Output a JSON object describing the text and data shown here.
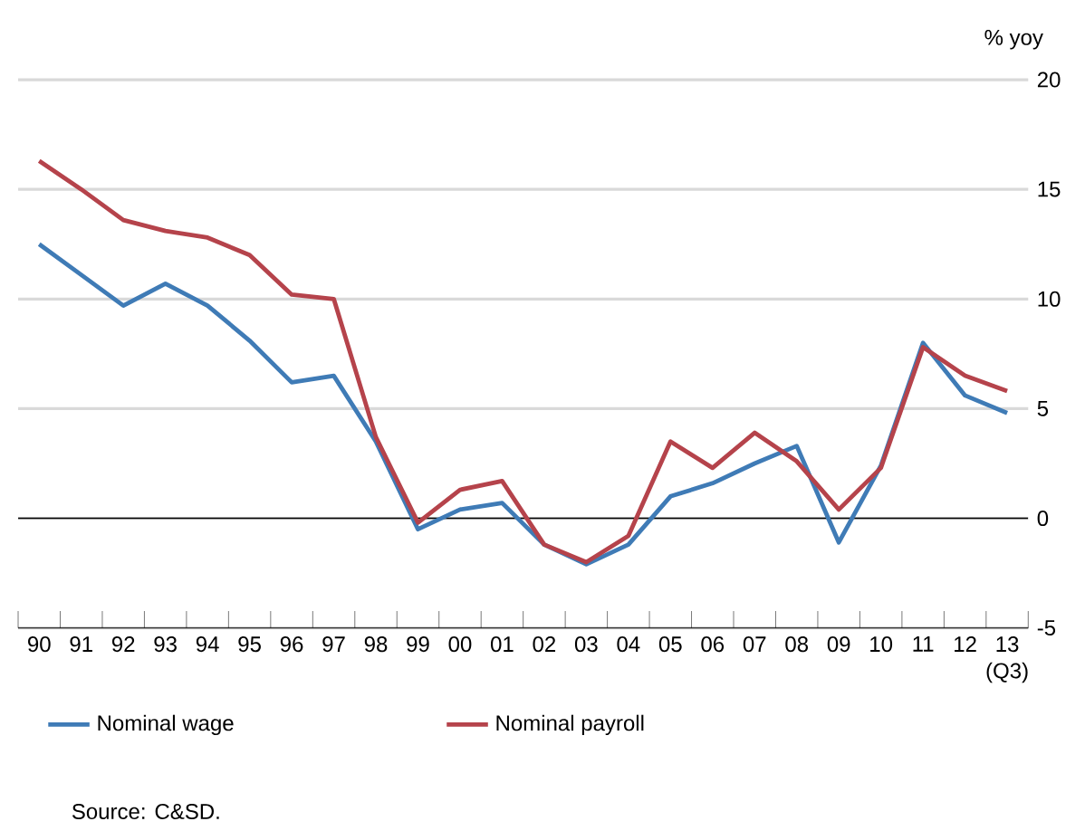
{
  "chart_data": {
    "type": "line",
    "ylabel": "% yoy",
    "categories": [
      "90",
      "91",
      "92",
      "93",
      "94",
      "95",
      "96",
      "97",
      "98",
      "99",
      "00",
      "01",
      "02",
      "03",
      "04",
      "05",
      "06",
      "07",
      "08",
      "09",
      "10",
      "11",
      "12",
      "13 (Q3)"
    ],
    "series": [
      {
        "name": "Nominal wage",
        "color": "#3f7bb6",
        "values": [
          12.5,
          11.1,
          9.7,
          10.7,
          9.7,
          8.1,
          6.2,
          6.5,
          3.5,
          -0.5,
          0.4,
          0.7,
          -1.2,
          -2.1,
          -1.2,
          1.0,
          1.6,
          2.5,
          3.3,
          -1.1,
          2.4,
          8.0,
          5.6,
          4.8
        ]
      },
      {
        "name": "Nominal payroll",
        "color": "#b5434b",
        "values": [
          16.3,
          15.0,
          13.6,
          13.1,
          12.8,
          12.0,
          10.2,
          10.0,
          3.7,
          -0.2,
          1.3,
          1.7,
          -1.2,
          -2.0,
          -0.8,
          3.5,
          2.3,
          3.9,
          2.6,
          0.4,
          2.3,
          7.8,
          6.5,
          5.8
        ]
      }
    ],
    "ylim": [
      -5,
      20
    ],
    "yticks": [
      -5,
      0,
      5,
      10,
      15,
      20
    ],
    "grid": "y",
    "legend": "bottom",
    "marker": "none",
    "line_style": "solid",
    "ref_lines": [
      {
        "axis": "y",
        "value": 0,
        "color": "#000000"
      }
    ],
    "annotations": [
      "Source: C&SD."
    ]
  }
}
